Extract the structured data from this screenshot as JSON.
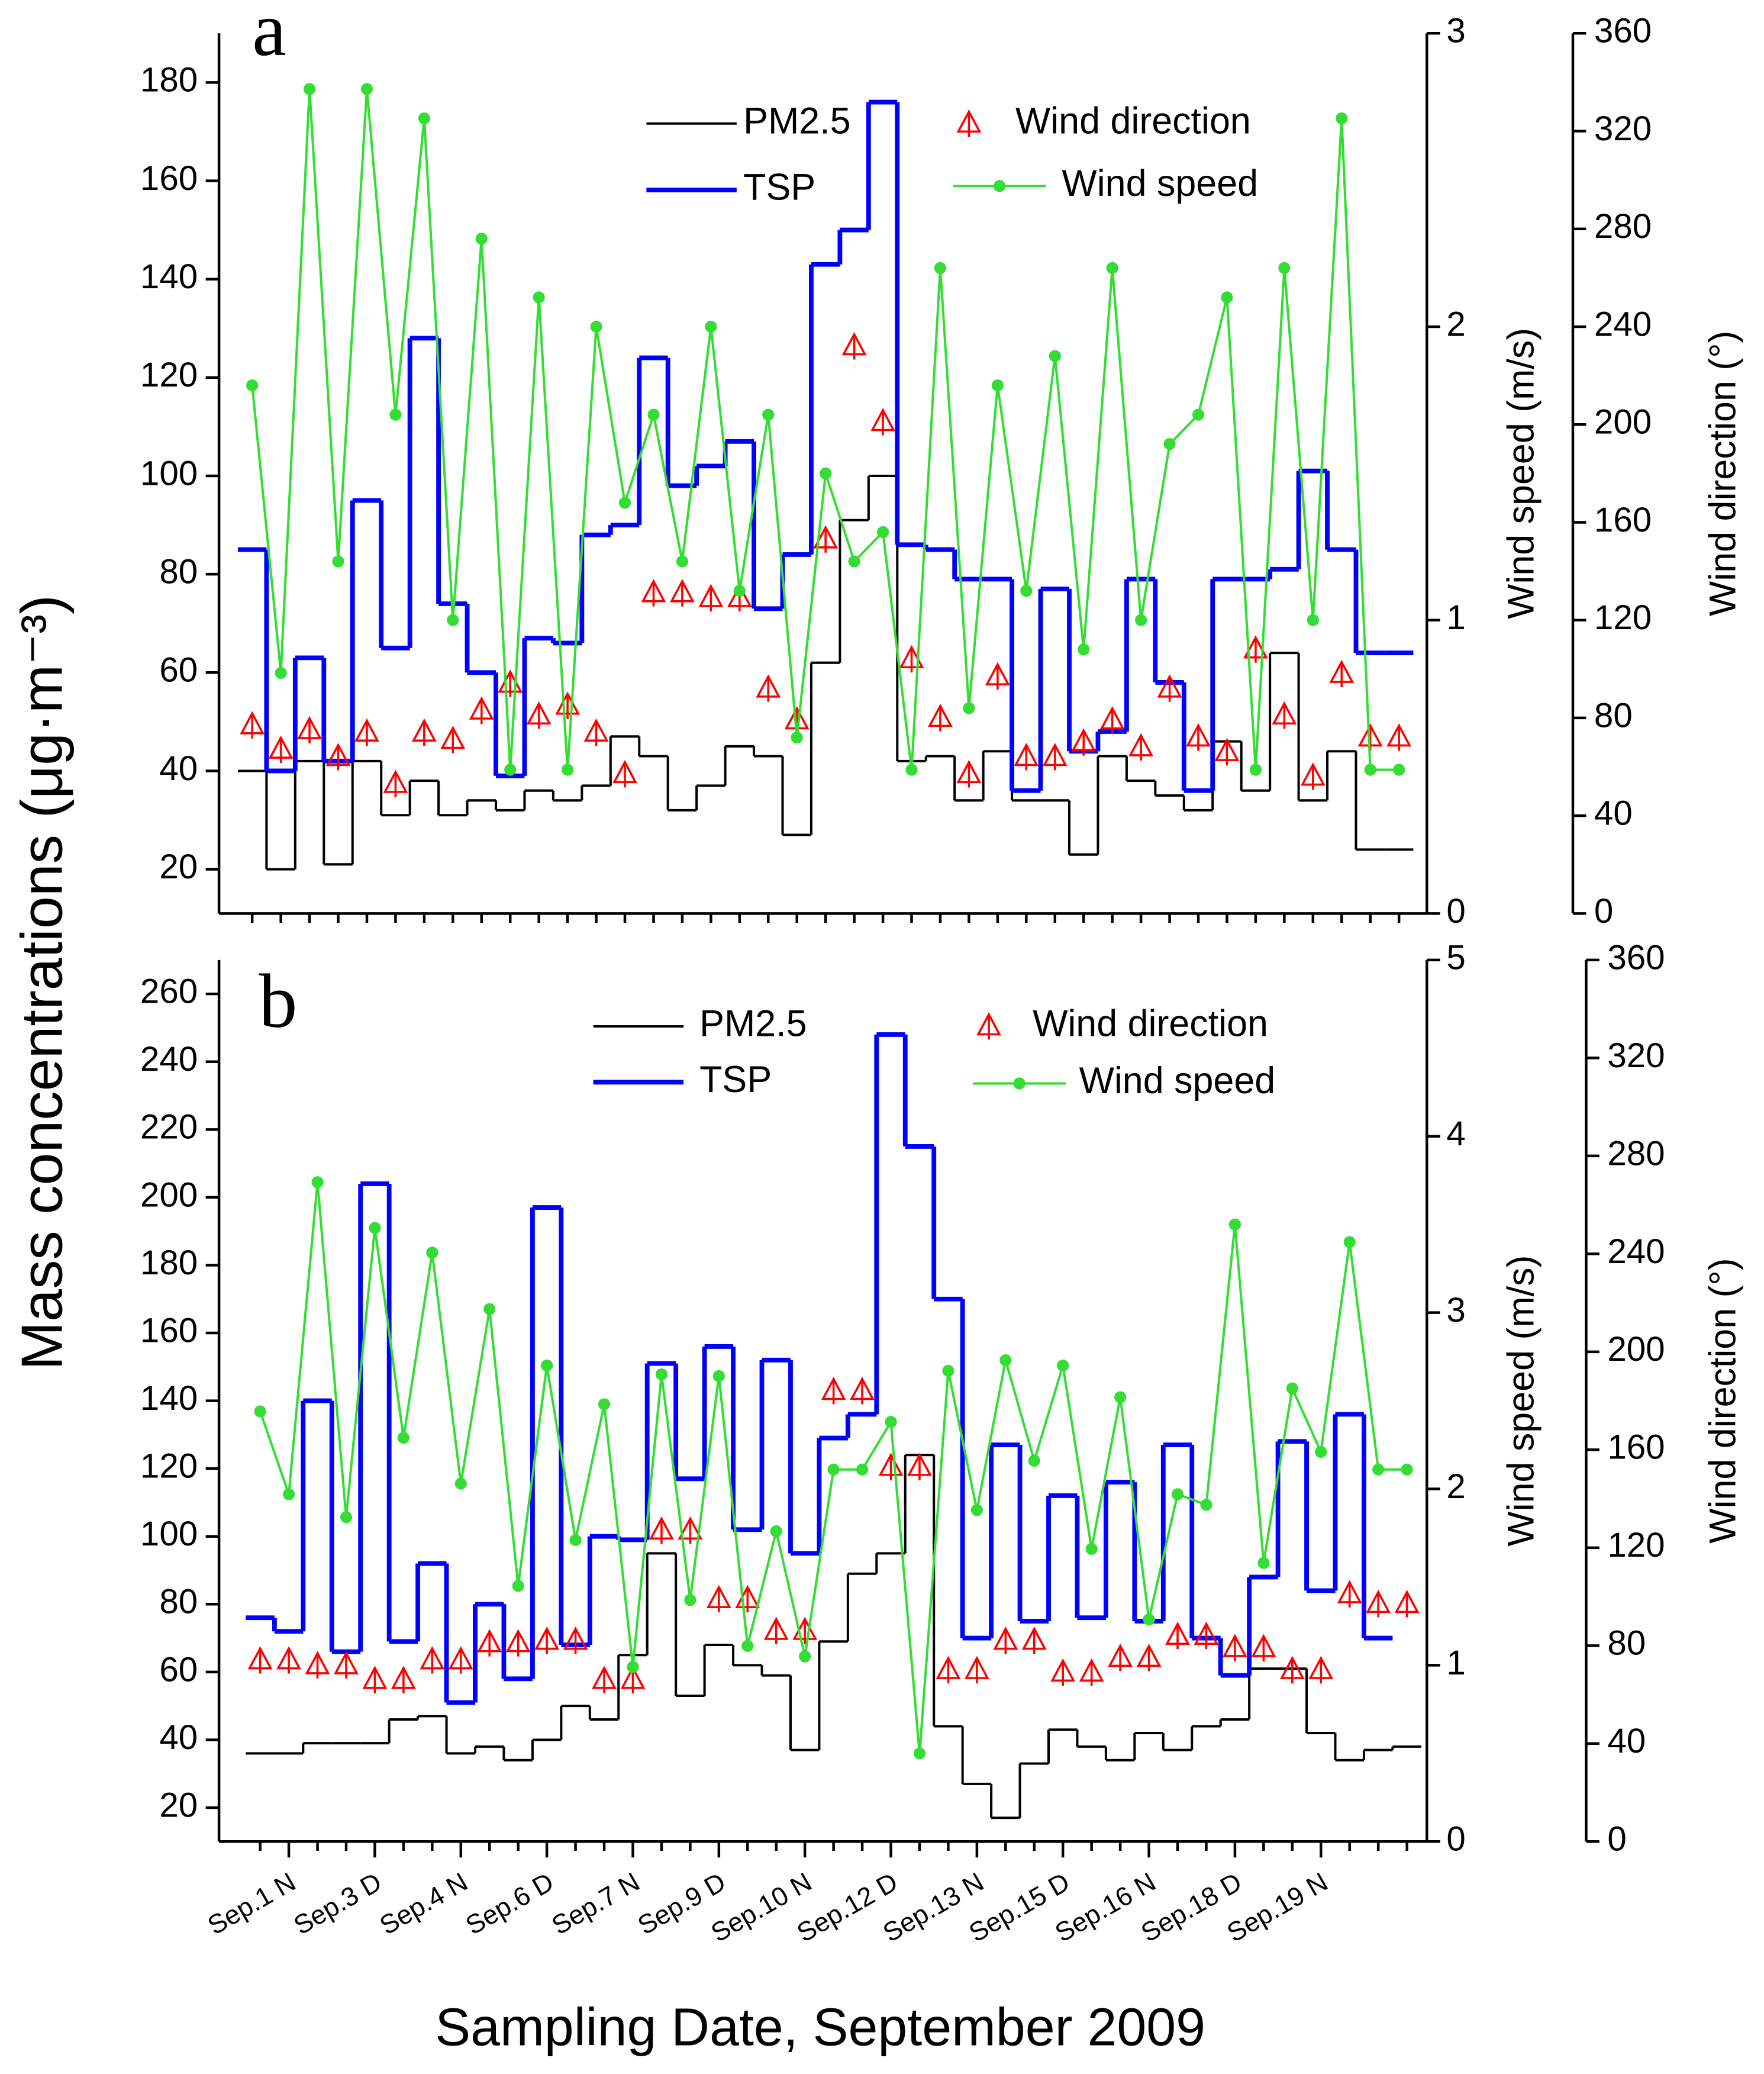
{
  "ylabel": "Mass concentrations (μg·m⁻³)",
  "xlabel": "Sampling Date, September 2009",
  "chart_data": [
    {
      "type": "line",
      "title": "a",
      "categories": [
        null,
        null,
        null,
        null,
        null,
        null,
        null,
        null,
        null,
        null,
        null,
        null,
        null,
        null,
        null,
        null,
        null,
        null,
        null,
        null,
        null,
        null,
        null,
        null,
        null,
        null,
        null,
        null,
        null,
        null,
        null,
        null,
        null,
        null,
        null,
        null,
        null,
        null,
        null,
        null,
        null
      ],
      "ylim": [
        11,
        190
      ],
      "yticks": [
        20,
        40,
        60,
        80,
        100,
        120,
        140,
        160,
        180
      ],
      "y2lim": [
        0,
        3
      ],
      "y2ticks": [
        0,
        1,
        2,
        3
      ],
      "y2label": "Wind speed (m/s)",
      "y3lim": [
        0,
        360
      ],
      "y3ticks": [
        0,
        40,
        80,
        120,
        160,
        200,
        240,
        280,
        320,
        360
      ],
      "y3label": "Wind direction (°)",
      "series": [
        {
          "name": "PM2.5",
          "color": "#000000",
          "style": "step",
          "values": [
            40,
            20,
            42,
            21,
            42,
            31,
            38,
            31,
            34,
            32,
            36,
            34,
            37,
            47,
            43,
            32,
            37,
            45,
            43,
            27,
            62,
            91,
            100,
            42,
            43,
            34,
            44,
            34,
            34,
            23,
            43,
            38,
            35,
            32,
            46,
            36,
            64,
            34,
            44,
            24,
            24
          ]
        },
        {
          "name": "TSP",
          "color": "#0000ff",
          "style": "step",
          "values": [
            85,
            40,
            63,
            42,
            95,
            65,
            128,
            74,
            60,
            39,
            67,
            66,
            88,
            90,
            124,
            98,
            102,
            107,
            73,
            84,
            143,
            150,
            176,
            86,
            85,
            79,
            79,
            36,
            77,
            44,
            48,
            79,
            58,
            36,
            79,
            79,
            81,
            101,
            85,
            64,
            64
          ]
        },
        {
          "name": "Wind direction",
          "color": "#ff0000",
          "style": "marker",
          "axis": "y3",
          "values": [
            77,
            67,
            75,
            64,
            74,
            53,
            74,
            71,
            83,
            94,
            81,
            85,
            74,
            57,
            131,
            131,
            129,
            129,
            92,
            79,
            153,
            232,
            201,
            104,
            80,
            57,
            97,
            64,
            64,
            70,
            79,
            68,
            92,
            72,
            66,
            108,
            81,
            56,
            98,
            72,
            72
          ]
        },
        {
          "name": "Wind speed",
          "color": "#33dd33",
          "style": "line",
          "axis": "y2",
          "values": [
            1.8,
            0.82,
            2.81,
            1.2,
            2.81,
            1.7,
            2.71,
            1.0,
            2.3,
            0.49,
            2.1,
            0.49,
            2.0,
            1.4,
            1.7,
            1.2,
            2.0,
            1.1,
            1.7,
            0.6,
            1.5,
            1.2,
            1.3,
            0.49,
            2.2,
            0.7,
            1.8,
            1.1,
            1.9,
            0.9,
            2.2,
            1.0,
            1.6,
            1.7,
            2.1,
            0.49,
            2.2,
            1.0,
            2.71,
            0.49,
            0.49
          ]
        }
      ]
    },
    {
      "type": "line",
      "title": "b",
      "categories": [
        null,
        "Sep.1 N",
        null,
        null,
        "Sep.3 D",
        null,
        null,
        "Sep.4 N",
        null,
        null,
        "Sep.6 D",
        null,
        null,
        "Sep.7 N",
        null,
        null,
        "Sep.9 D",
        null,
        null,
        "Sep.10 N",
        null,
        null,
        "Sep.12 D",
        null,
        null,
        "Sep.13 N",
        null,
        null,
        "Sep.15 D",
        null,
        null,
        "Sep.16 N",
        null,
        null,
        "Sep.18 D",
        null,
        null,
        "Sep.19 N",
        null,
        null,
        null
      ],
      "ylim": [
        10,
        270
      ],
      "yticks": [
        20,
        40,
        60,
        80,
        100,
        120,
        140,
        160,
        180,
        200,
        220,
        240,
        260
      ],
      "y2lim": [
        0,
        5
      ],
      "y2ticks": [
        0,
        1,
        2,
        3,
        4,
        5
      ],
      "y2label": "Wind speed (m/s)",
      "y3lim": [
        0,
        360
      ],
      "y3ticks": [
        0,
        40,
        80,
        120,
        160,
        200,
        240,
        280,
        320,
        360
      ],
      "y3label": "Wind direction (°)",
      "series": [
        {
          "name": "PM2.5",
          "color": "#000000",
          "style": "step",
          "values": [
            36,
            36,
            39,
            39,
            39,
            46,
            47,
            36,
            38,
            34,
            40,
            50,
            46,
            65,
            95,
            53,
            68,
            62,
            59,
            37,
            69,
            89,
            95,
            124,
            44,
            27,
            17,
            33,
            43,
            38,
            34,
            42,
            37,
            44,
            46,
            61,
            61,
            42,
            34,
            37,
            38
          ]
        },
        {
          "name": "TSP",
          "color": "#0000ff",
          "style": "step",
          "values": [
            76,
            72,
            140,
            66,
            204,
            69,
            92,
            51,
            80,
            58,
            197,
            68,
            100,
            99,
            151,
            117,
            156,
            102,
            152,
            95,
            129,
            136,
            248,
            215,
            170,
            70,
            127,
            75,
            112,
            76,
            116,
            75,
            127,
            70,
            59,
            88,
            128,
            84,
            136,
            70,
            null
          ]
        },
        {
          "name": "Wind direction",
          "color": "#ff0000",
          "style": "marker",
          "axis": "y3",
          "values": [
            74,
            74,
            72,
            72,
            66,
            66,
            74,
            74,
            81,
            81,
            82,
            82,
            66,
            66,
            127,
            127,
            99,
            99,
            86,
            86,
            184,
            184,
            153,
            153,
            70,
            70,
            82,
            82,
            69,
            69,
            75,
            75,
            84,
            84,
            79,
            79,
            70,
            70,
            101,
            97,
            97
          ]
        },
        {
          "name": "Wind speed",
          "color": "#33dd33",
          "style": "line",
          "axis": "y2",
          "values": [
            2.44,
            1.97,
            3.74,
            1.84,
            3.48,
            2.29,
            3.34,
            2.03,
            3.02,
            1.45,
            2.7,
            1.71,
            2.48,
            0.99,
            2.65,
            1.37,
            2.64,
            1.11,
            1.76,
            1.05,
            2.11,
            2.11,
            2.38,
            0.5,
            2.67,
            1.88,
            2.73,
            2.16,
            2.7,
            1.66,
            2.52,
            1.26,
            1.97,
            1.91,
            3.5,
            1.58,
            2.57,
            2.21,
            3.4,
            2.11,
            2.11
          ]
        }
      ]
    }
  ]
}
